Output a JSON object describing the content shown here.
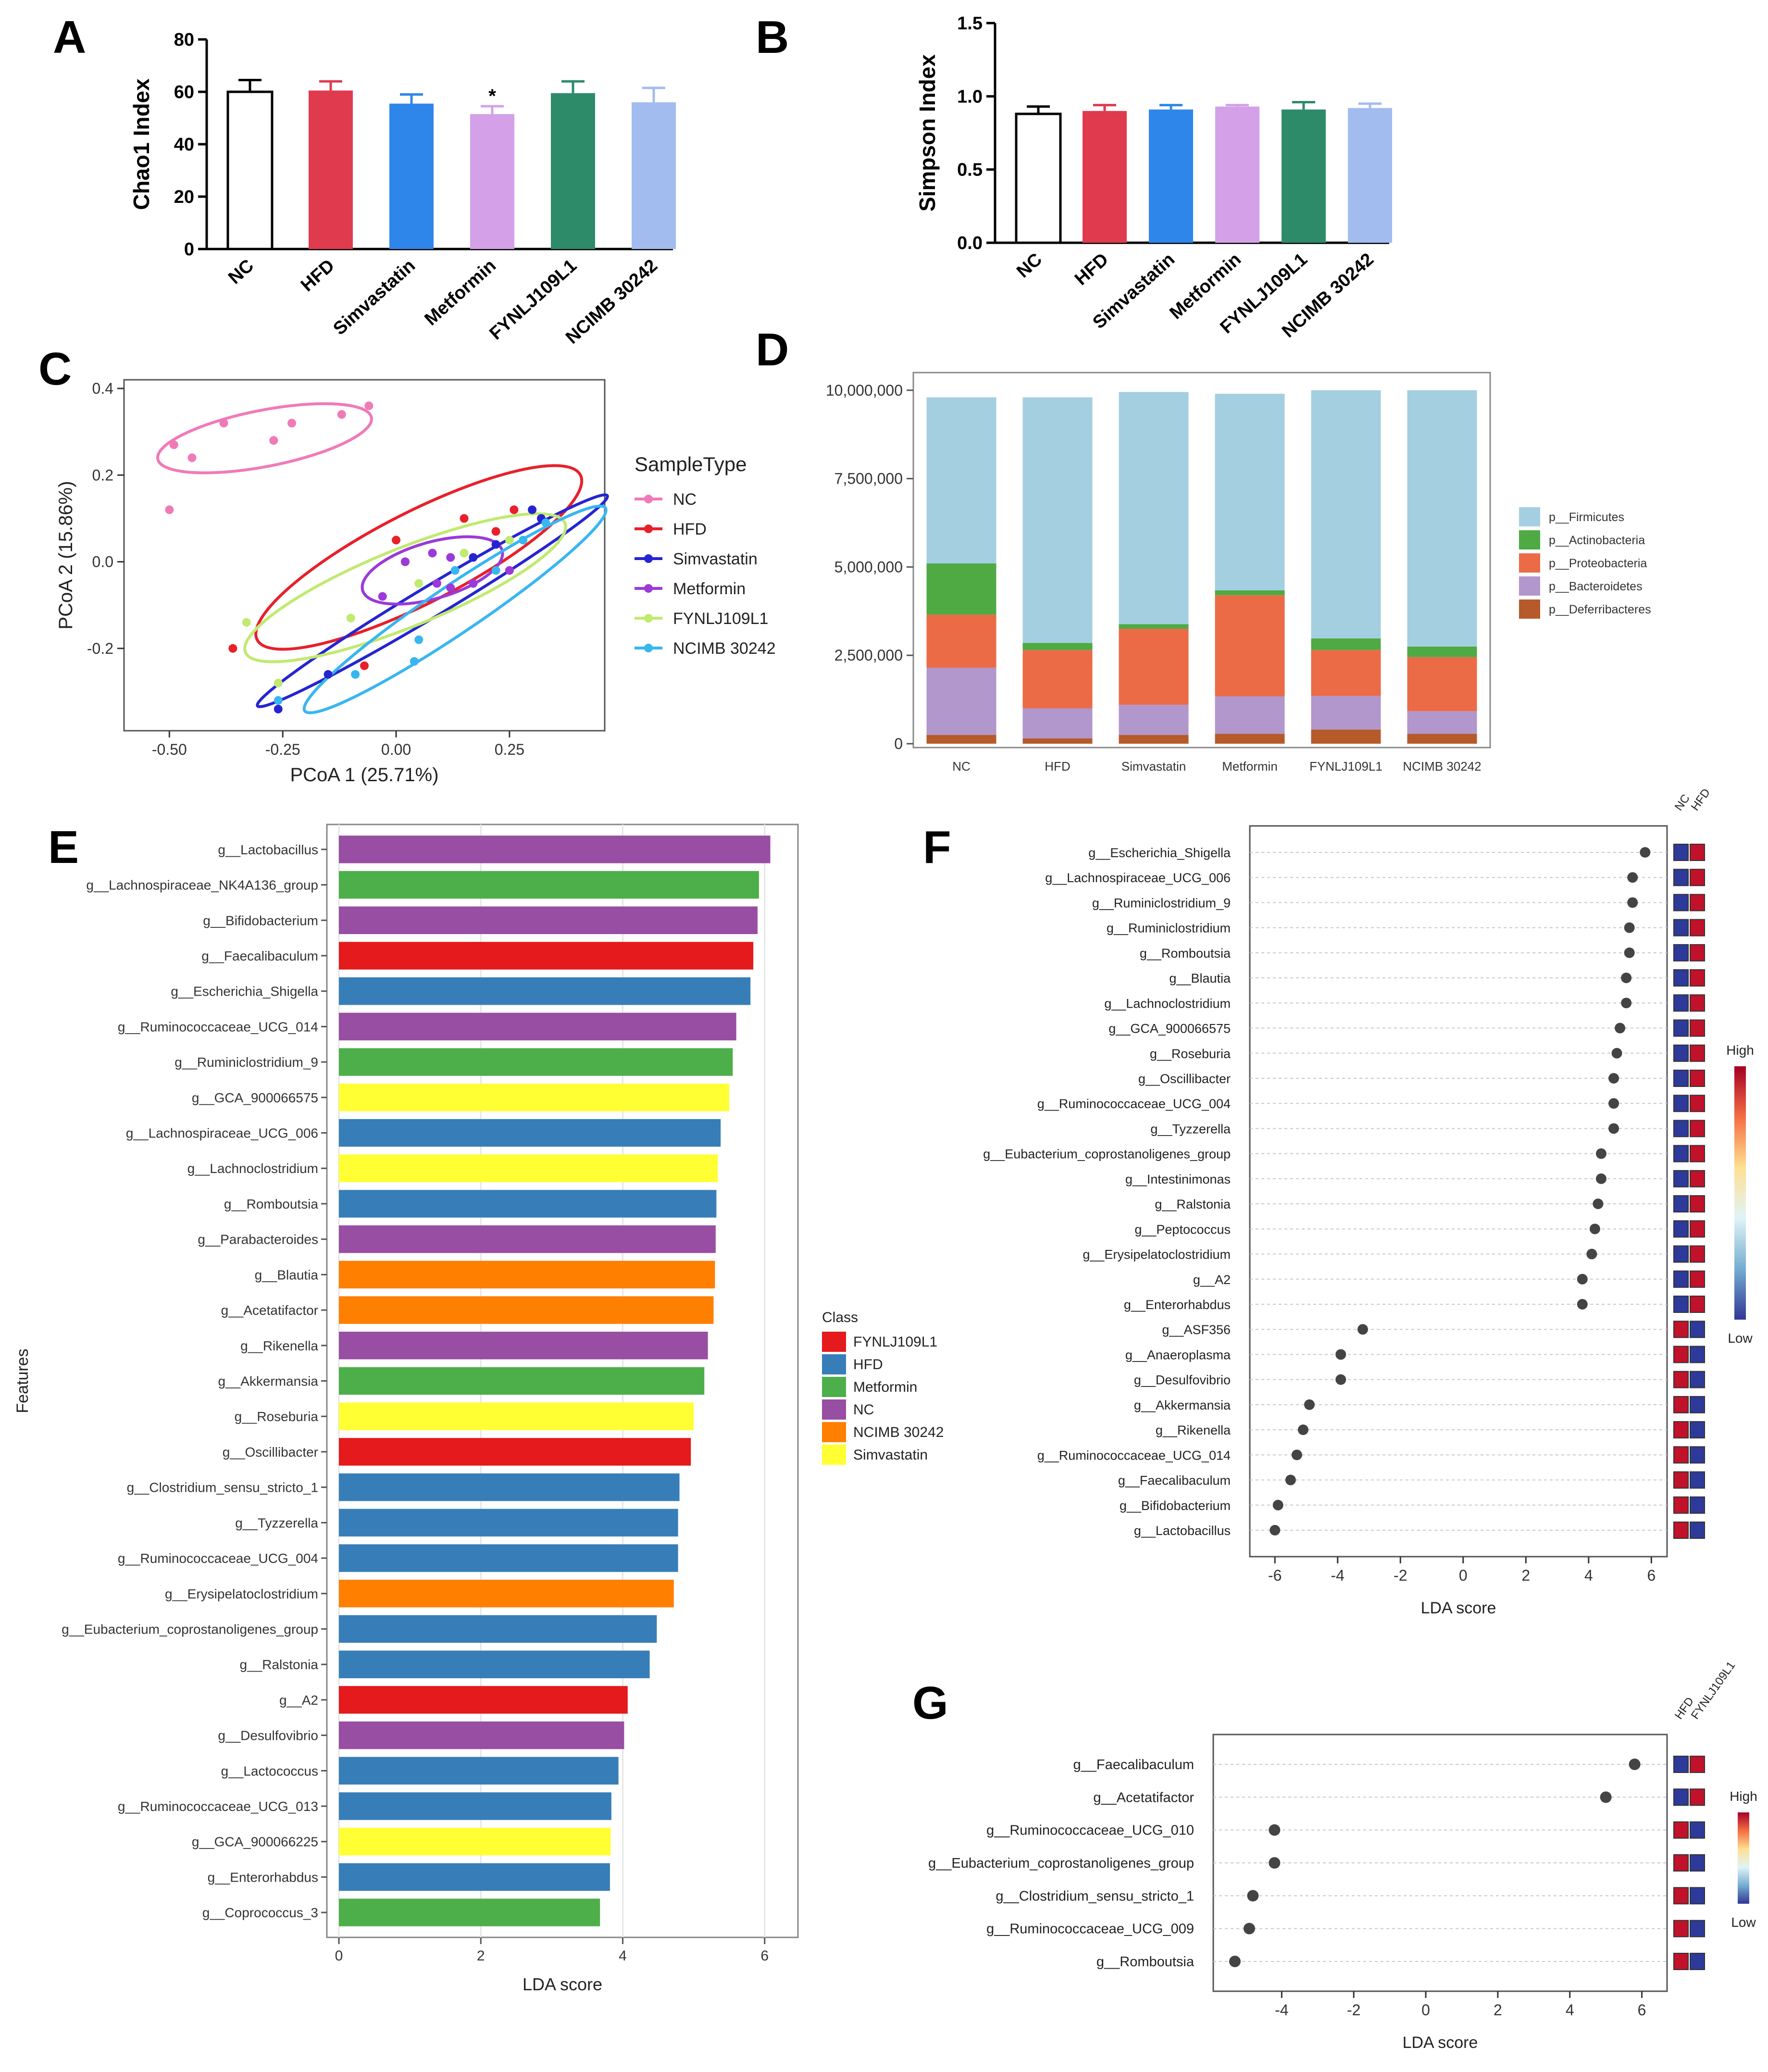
{
  "panel_letters": [
    "A",
    "B",
    "C",
    "D",
    "E",
    "F",
    "G"
  ],
  "chart_data": [
    {
      "id": "A",
      "type": "bar",
      "categories": [
        "NC",
        "HFD",
        "Simvastatin",
        "Metformin",
        "FYNLJ109L1",
        "NCIMB 30242"
      ],
      "values": [
        60,
        60.5,
        55.5,
        51.5,
        59.5,
        56
      ],
      "errors": [
        4.5,
        3.5,
        3.5,
        3.0,
        4.5,
        5.5
      ],
      "colors": [
        "#ffffff",
        "#e03a4e",
        "#2f86ea",
        "#d4a0e8",
        "#2e8b6a",
        "#a2bcef"
      ],
      "ylabel": "Chao1 Index",
      "ylim": [
        0,
        80
      ],
      "yticks": [
        "0",
        "20",
        "40",
        "60",
        "80"
      ],
      "annotation": "*"
    },
    {
      "id": "B",
      "type": "bar",
      "categories": [
        "NC",
        "HFD",
        "Simvastatin",
        "Metformin",
        "FYNLJ109L1",
        "NCIMB 30242"
      ],
      "values": [
        0.88,
        0.9,
        0.91,
        0.93,
        0.91,
        0.92
      ],
      "errors": [
        0.05,
        0.04,
        0.03,
        0.01,
        0.05,
        0.03
      ],
      "colors": [
        "#ffffff",
        "#e03a4e",
        "#2f86ea",
        "#d4a0e8",
        "#2e8b6a",
        "#a2bcef"
      ],
      "ylabel": "Simpson Index",
      "ylim": [
        0,
        1.5
      ],
      "yticks": [
        "0.0",
        "0.5",
        "1.0",
        "1.5"
      ]
    },
    {
      "id": "C",
      "type": "scatter",
      "xlabel": "PCoA 1 (25.71%)",
      "ylabel": "PCoA 2 (15.86%)",
      "xlim": [
        -0.6,
        0.46
      ],
      "ylim": [
        -0.39,
        0.42
      ],
      "xticks": [
        "-0.50",
        "-0.25",
        "0.00",
        "0.25"
      ],
      "yticks": [
        "-0.2",
        "0.0",
        "0.2",
        "0.4"
      ],
      "legend_title": "SampleType",
      "series": [
        {
          "name": "NC",
          "color": "#f07ab8",
          "points": [
            [
              -0.5,
              0.12
            ],
            [
              -0.49,
              0.27
            ],
            [
              -0.45,
              0.24
            ],
            [
              -0.38,
              0.32
            ],
            [
              -0.27,
              0.28
            ],
            [
              -0.23,
              0.32
            ],
            [
              -0.12,
              0.34
            ],
            [
              -0.06,
              0.36
            ]
          ],
          "ellipse": {
            "cx": -0.29,
            "cy": 0.285,
            "rx": 0.24,
            "ry": 0.065,
            "angle": 11
          }
        },
        {
          "name": "HFD",
          "color": "#e8202a",
          "points": [
            [
              -0.36,
              -0.2
            ],
            [
              -0.07,
              -0.24
            ],
            [
              0.0,
              0.05
            ],
            [
              0.02,
              0.0
            ],
            [
              0.15,
              0.1
            ],
            [
              0.22,
              0.07
            ],
            [
              0.26,
              0.12
            ]
          ],
          "ellipse": {
            "cx": 0.05,
            "cy": 0.01,
            "rx": 0.4,
            "ry": 0.105,
            "angle": 27
          }
        },
        {
          "name": "Simvastatin",
          "color": "#2525d0",
          "points": [
            [
              -0.26,
              -0.34
            ],
            [
              -0.15,
              -0.26
            ],
            [
              0.17,
              0.01
            ],
            [
              0.22,
              0.04
            ],
            [
              0.3,
              0.12
            ],
            [
              0.32,
              0.1
            ]
          ],
          "ellipse": {
            "cx": 0.08,
            "cy": -0.09,
            "rx": 0.45,
            "ry": 0.035,
            "angle": 31
          }
        },
        {
          "name": "Metformin",
          "color": "#9b39d9",
          "points": [
            [
              -0.03,
              -0.08
            ],
            [
              0.02,
              0.0
            ],
            [
              0.08,
              0.02
            ],
            [
              0.12,
              0.01
            ],
            [
              0.09,
              -0.05
            ],
            [
              0.17,
              -0.05
            ],
            [
              0.12,
              -0.06
            ],
            [
              0.25,
              -0.02
            ]
          ],
          "ellipse": {
            "cx": 0.08,
            "cy": -0.02,
            "rx": 0.16,
            "ry": 0.065,
            "angle": 16
          }
        },
        {
          "name": "FYNLJ109L1",
          "color": "#c0ea70",
          "points": [
            [
              -0.33,
              -0.14
            ],
            [
              -0.26,
              -0.28
            ],
            [
              -0.1,
              -0.13
            ],
            [
              0.05,
              -0.05
            ],
            [
              0.15,
              0.02
            ],
            [
              0.25,
              0.05
            ]
          ],
          "ellipse": {
            "cx": 0.02,
            "cy": -0.06,
            "rx": 0.38,
            "ry": 0.09,
            "angle": 22
          }
        },
        {
          "name": "NCIMB 30242",
          "color": "#38b6f0",
          "points": [
            [
              -0.26,
              -0.32
            ],
            [
              -0.09,
              -0.26
            ],
            [
              0.04,
              -0.23
            ],
            [
              0.05,
              -0.18
            ],
            [
              0.13,
              -0.02
            ],
            [
              0.22,
              -0.02
            ],
            [
              0.28,
              0.05
            ],
            [
              0.33,
              0.09
            ]
          ],
          "ellipse": {
            "cx": 0.13,
            "cy": -0.11,
            "rx": 0.4,
            "ry": 0.055,
            "angle": 34
          }
        }
      ]
    },
    {
      "id": "D",
      "type": "bar",
      "stacked": true,
      "categories": [
        "NC",
        "HFD",
        "Simvastatin",
        "Metformin",
        "FYNLJ109L1",
        "NCIMB 30242"
      ],
      "ylim": [
        0,
        10500000
      ],
      "yticks": [
        "0",
        "2,500,000",
        "5,000,000",
        "7,500,000",
        "10,000,000"
      ],
      "series": [
        {
          "name": "p__Deferribacteres",
          "color": "#b65a2b",
          "values": [
            250000,
            150000,
            250000,
            280000,
            400000,
            280000
          ]
        },
        {
          "name": "p__Bacteroidetes",
          "color": "#b197cc",
          "values": [
            1900000,
            850000,
            850000,
            1060000,
            950000,
            640000
          ]
        },
        {
          "name": "p__Proteobacteria",
          "color": "#eb6b46",
          "values": [
            1500000,
            1650000,
            2150000,
            2860000,
            1300000,
            1530000
          ]
        },
        {
          "name": "p__Actinobacteria",
          "color": "#4faa44",
          "values": [
            1450000,
            200000,
            130000,
            140000,
            330000,
            300000
          ]
        },
        {
          "name": "p__Firmicutes",
          "color": "#a4cfe0",
          "values": [
            4700000,
            6950000,
            6570000,
            5560000,
            7020000,
            7250000
          ]
        }
      ],
      "legend_order": [
        "p__Firmicutes",
        "p__Actinobacteria",
        "p__Proteobacteria",
        "p__Bacteroidetes",
        "p__Deferribacteres"
      ]
    },
    {
      "id": "E",
      "type": "bar",
      "orientation": "horizontal",
      "xlabel": "LDA score",
      "ylabel": "Features",
      "xlim": [
        0,
        6.3
      ],
      "xticks": [
        "0",
        "2",
        "4",
        "6"
      ],
      "legend_title": "Class",
      "classes": [
        {
          "name": "FYNLJ109L1",
          "color": "#e41a1c"
        },
        {
          "name": "HFD",
          "color": "#377eb8"
        },
        {
          "name": "Metformin",
          "color": "#4daf4a"
        },
        {
          "name": "NC",
          "color": "#984ea3"
        },
        {
          "name": "NCIMB 30242",
          "color": "#ff7f00"
        },
        {
          "name": "Simvastatin",
          "color": "#ffff33"
        }
      ],
      "features": [
        {
          "label": "g__Lactobacillus",
          "value": 6.08,
          "class": "NC"
        },
        {
          "label": "g__Lachnospiraceae_NK4A136_group",
          "value": 5.92,
          "class": "Metformin"
        },
        {
          "label": "g__Bifidobacterium",
          "value": 5.9,
          "class": "NC"
        },
        {
          "label": "g__Faecalibaculum",
          "value": 5.84,
          "class": "FYNLJ109L1"
        },
        {
          "label": "g__Escherichia_Shigella",
          "value": 5.8,
          "class": "HFD"
        },
        {
          "label": "g__Ruminococcaceae_UCG_014",
          "value": 5.6,
          "class": "NC"
        },
        {
          "label": "g__Ruminiclostridium_9",
          "value": 5.55,
          "class": "Metformin"
        },
        {
          "label": "g__GCA_900066575",
          "value": 5.5,
          "class": "Simvastatin"
        },
        {
          "label": "g__Lachnospiraceae_UCG_006",
          "value": 5.38,
          "class": "HFD"
        },
        {
          "label": "g__Lachnoclostridium",
          "value": 5.34,
          "class": "Simvastatin"
        },
        {
          "label": "g__Romboutsia",
          "value": 5.32,
          "class": "HFD"
        },
        {
          "label": "g__Parabacteroides",
          "value": 5.31,
          "class": "NC"
        },
        {
          "label": "g__Blautia",
          "value": 5.3,
          "class": "NCIMB 30242"
        },
        {
          "label": "g__Acetatifactor",
          "value": 5.28,
          "class": "NCIMB 30242"
        },
        {
          "label": "g__Rikenella",
          "value": 5.2,
          "class": "NC"
        },
        {
          "label": "g__Akkermansia",
          "value": 5.15,
          "class": "Metformin"
        },
        {
          "label": "g__Roseburia",
          "value": 5.0,
          "class": "Simvastatin"
        },
        {
          "label": "g__Oscillibacter",
          "value": 4.96,
          "class": "FYNLJ109L1"
        },
        {
          "label": "g__Clostridium_sensu_stricto_1",
          "value": 4.8,
          "class": "HFD"
        },
        {
          "label": "g__Tyzzerella",
          "value": 4.78,
          "class": "HFD"
        },
        {
          "label": "g__Ruminococcaceae_UCG_004",
          "value": 4.78,
          "class": "HFD"
        },
        {
          "label": "g__Erysipelatoclostridium",
          "value": 4.72,
          "class": "NCIMB 30242"
        },
        {
          "label": "g__Eubacterium_coprostanoligenes_group",
          "value": 4.48,
          "class": "HFD"
        },
        {
          "label": "g__Ralstonia",
          "value": 4.38,
          "class": "HFD"
        },
        {
          "label": "g__A2",
          "value": 4.07,
          "class": "FYNLJ109L1"
        },
        {
          "label": "g__Desulfovibrio",
          "value": 4.02,
          "class": "NC"
        },
        {
          "label": "g__Lactococcus",
          "value": 3.94,
          "class": "HFD"
        },
        {
          "label": "g__Ruminococcaceae_UCG_013",
          "value": 3.84,
          "class": "HFD"
        },
        {
          "label": "g__GCA_900066225",
          "value": 3.83,
          "class": "Simvastatin"
        },
        {
          "label": "g__Enterorhabdus",
          "value": 3.82,
          "class": "HFD"
        },
        {
          "label": "g__Coprococcus_3",
          "value": 3.68,
          "class": "Metformin"
        }
      ]
    },
    {
      "id": "F",
      "type": "scatter",
      "xlabel": "LDA score",
      "xlim": [
        -6.8,
        6.5
      ],
      "xticks": [
        "-6",
        "-4",
        "-2",
        "0",
        "2",
        "4",
        "6"
      ],
      "heat_columns": [
        "NC",
        "HFD"
      ],
      "heat_high": "High",
      "heat_low": "Low",
      "features": [
        {
          "label": "g__Escherichia_Shigella",
          "value": 5.8
        },
        {
          "label": "g__Lachnospiraceae_UCG_006",
          "value": 5.4
        },
        {
          "label": "g__Ruminiclostridium_9",
          "value": 5.4
        },
        {
          "label": "g__Ruminiclostridium",
          "value": 5.3
        },
        {
          "label": "g__Romboutsia",
          "value": 5.3
        },
        {
          "label": "g__Blautia",
          "value": 5.2
        },
        {
          "label": "g__Lachnoclostridium",
          "value": 5.2
        },
        {
          "label": "g__GCA_900066575",
          "value": 5.0
        },
        {
          "label": "g__Roseburia",
          "value": 4.9
        },
        {
          "label": "g__Oscillibacter",
          "value": 4.8
        },
        {
          "label": "g__Ruminococcaceae_UCG_004",
          "value": 4.8
        },
        {
          "label": "g__Tyzzerella",
          "value": 4.8
        },
        {
          "label": "g__Eubacterium_coprostanoligenes_group",
          "value": 4.4
        },
        {
          "label": "g__Intestinimonas",
          "value": 4.4
        },
        {
          "label": "g__Ralstonia",
          "value": 4.3
        },
        {
          "label": "g__Peptococcus",
          "value": 4.2
        },
        {
          "label": "g__Erysipelatoclostridium",
          "value": 4.1
        },
        {
          "label": "g__A2",
          "value": 3.8
        },
        {
          "label": "g__Enterorhabdus",
          "value": 3.8
        },
        {
          "label": "g__ASF356",
          "value": -3.2
        },
        {
          "label": "g__Anaeroplasma",
          "value": -3.9
        },
        {
          "label": "g__Desulfovibrio",
          "value": -3.9
        },
        {
          "label": "g__Akkermansia",
          "value": -4.9
        },
        {
          "label": "g__Rikenella",
          "value": -5.1
        },
        {
          "label": "g__Ruminococcaceae_UCG_014",
          "value": -5.3
        },
        {
          "label": "g__Faecalibaculum",
          "value": -5.5
        },
        {
          "label": "g__Bifidobacterium",
          "value": -5.9
        },
        {
          "label": "g__Lactobacillus",
          "value": -6.0
        }
      ]
    },
    {
      "id": "G",
      "type": "scatter",
      "xlabel": "LDA score",
      "xlim": [
        -5.9,
        6.7
      ],
      "xticks": [
        "-4",
        "-2",
        "0",
        "2",
        "4",
        "6"
      ],
      "heat_columns": [
        "HFD",
        "FYNLJ109L1"
      ],
      "heat_high": "High",
      "heat_low": "Low",
      "features": [
        {
          "label": "g__Faecalibaculum",
          "value": 5.8
        },
        {
          "label": "g__Acetatifactor",
          "value": 5.0
        },
        {
          "label": "g__Ruminococcaceae_UCG_010",
          "value": -4.2
        },
        {
          "label": "g__Eubacterium_coprostanoligenes_group",
          "value": -4.2
        },
        {
          "label": "g__Clostridium_sensu_stricto_1",
          "value": -4.8
        },
        {
          "label": "g__Ruminococcaceae_UCG_009",
          "value": -4.9
        },
        {
          "label": "g__Romboutsia",
          "value": -5.3
        }
      ]
    }
  ]
}
